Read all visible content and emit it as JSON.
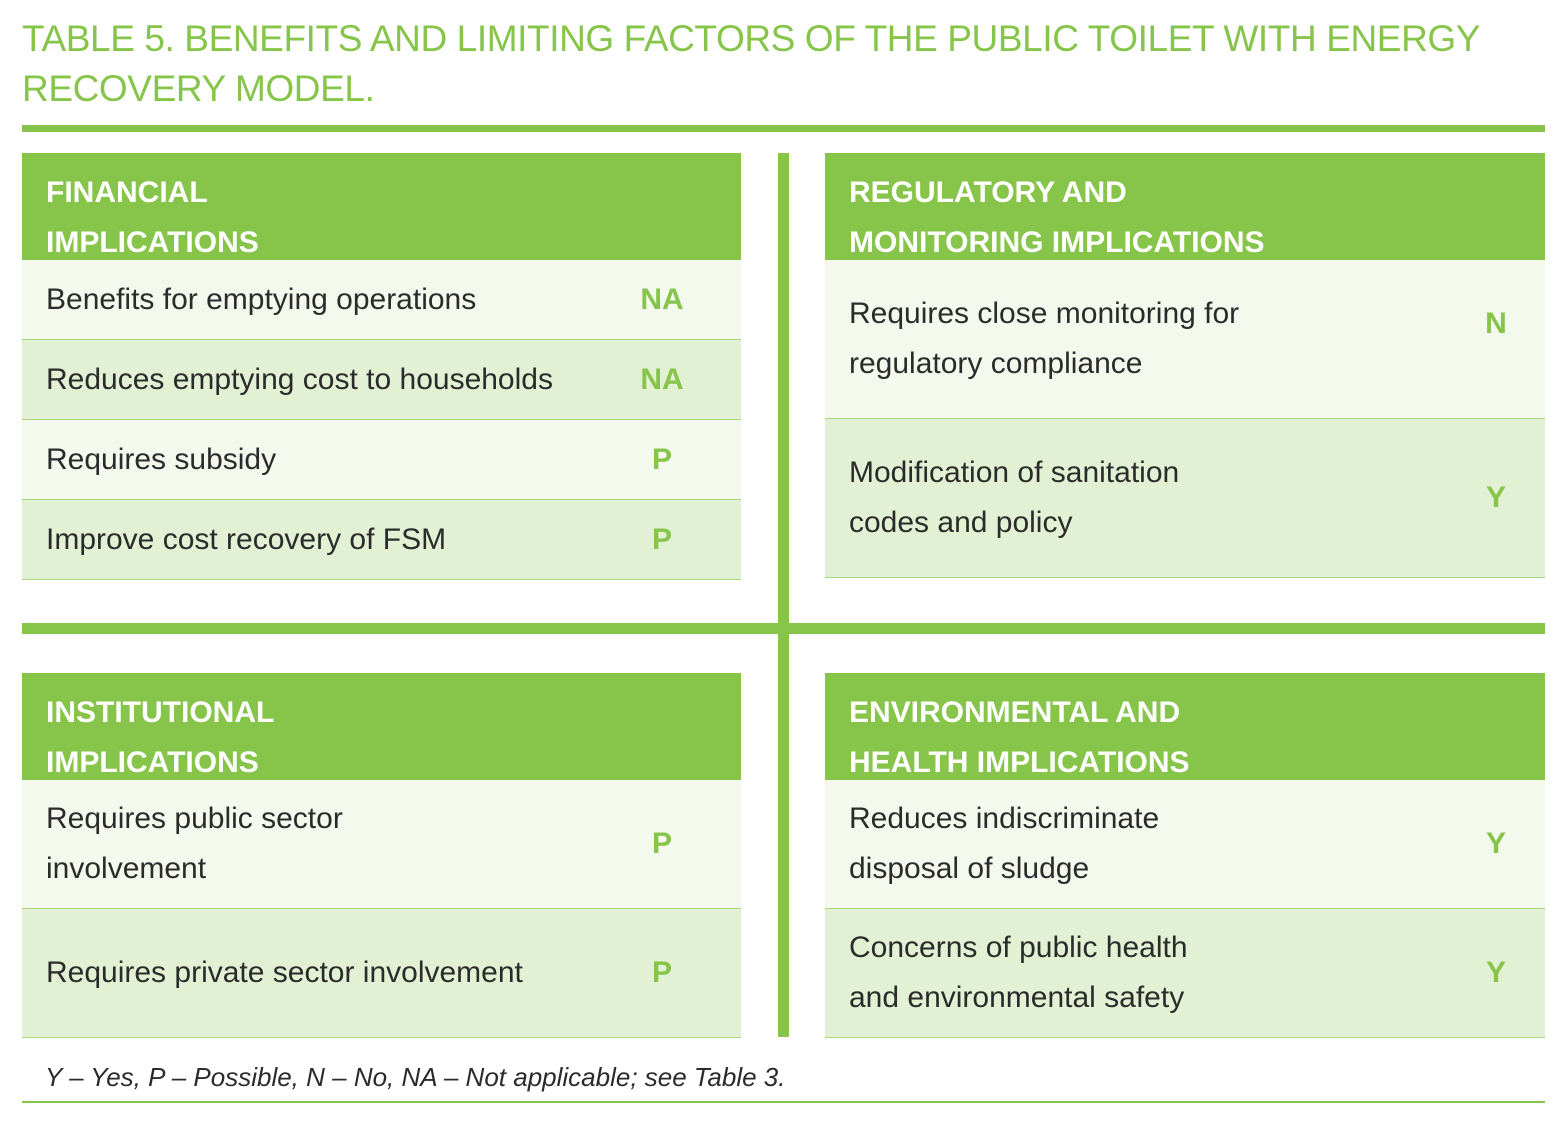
{
  "title": "TABLE 5. BENEFITS AND LIMITING FACTORS OF THE PUBLIC TOILET WITH ENERGY RECOVERY MODEL.",
  "panels": [
    {
      "heading": [
        "FINANCIAL",
        "IMPLICATIONS"
      ],
      "rows": [
        {
          "label": [
            "Benefits for emptying operations"
          ],
          "value": "NA"
        },
        {
          "label": [
            "Reduces emptying cost to households"
          ],
          "value": "NA"
        },
        {
          "label": [
            "Requires subsidy"
          ],
          "value": "P"
        },
        {
          "label": [
            "Improve cost recovery of FSM"
          ],
          "value": "P"
        }
      ]
    },
    {
      "heading": [
        "REGULATORY AND",
        "MONITORING IMPLICATIONS"
      ],
      "rows": [
        {
          "label": [
            "Requires close monitoring for",
            "regulatory compliance"
          ],
          "value": "N"
        },
        {
          "label": [
            "Modification of sanitation",
            "codes and policy"
          ],
          "value": "Y"
        }
      ]
    },
    {
      "heading": [
        "INSTITUTIONAL",
        "IMPLICATIONS"
      ],
      "rows": [
        {
          "label": [
            "Requires public sector",
            "involvement"
          ],
          "value": "P"
        },
        {
          "label": [
            "Requires private sector involvement"
          ],
          "value": "P"
        }
      ]
    },
    {
      "heading": [
        "ENVIRONMENTAL AND",
        "HEALTH IMPLICATIONS"
      ],
      "rows": [
        {
          "label": [
            "Reduces indiscriminate",
            "disposal of sludge"
          ],
          "value": "Y"
        },
        {
          "label": [
            "Concerns of public health",
            "and environmental safety"
          ],
          "value": "Y"
        }
      ]
    }
  ],
  "footnote": "Y – Yes, P – Possible, N – No, NA – Not applicable; see Table 3.",
  "colors": {
    "accent": "#86c54a",
    "row_light": "#f4f9ee",
    "row_dark": "#e2f0d3",
    "text": "#2b2b2b"
  }
}
